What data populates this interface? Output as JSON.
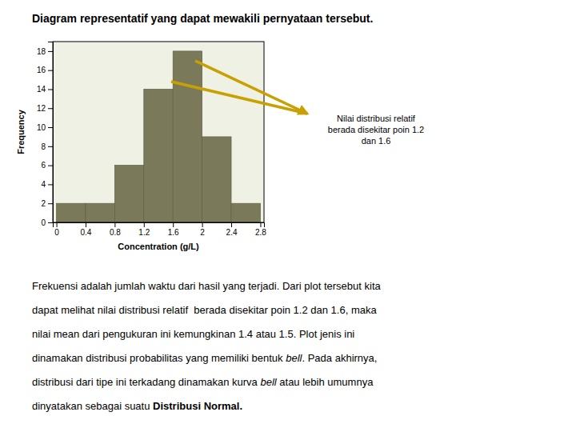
{
  "chart_data": {
    "type": "histogram",
    "title": "Diagram representatif yang dapat mewakili pernyataan tersebut.",
    "bins": [
      0.0,
      0.4,
      0.8,
      1.2,
      1.6,
      2.0,
      2.4,
      2.8
    ],
    "values": [
      2,
      2,
      6,
      14,
      18,
      9,
      2
    ],
    "color": "#7a7a5a",
    "xlabel": "Concentration (g/L)",
    "ylabel": "Frequency",
    "xlim": [
      -0.05,
      2.85
    ],
    "ylim": [
      0,
      19
    ],
    "xticks": [
      0,
      0.4,
      0.8,
      1.2,
      1.6,
      2,
      2.4,
      2.8
    ],
    "yticks": [
      0,
      2,
      4,
      6,
      8,
      10,
      12,
      14,
      16,
      18
    ],
    "annotation": "Nilai distribusi relatif\nberada disekitar poin 1.2\ndan 1.6",
    "body": [
      [
        {
          "text": "Frekuensi adalah jumlah waktu dari hasil yang terjadi. Dari plot tersebut kita",
          "style": "normal"
        }
      ],
      [
        {
          "text": "dapat melihat nilai distribusi relatif  berada disekitar poin 1.2 dan 1.6, maka",
          "style": "normal"
        }
      ],
      [
        {
          "text": "nilai mean dari pengukuran ini kemungkinan 1.4 atau 1.5. Plot jenis ini",
          "style": "normal"
        }
      ],
      [
        {
          "text": "dinamakan distribusi probabilitas yang memiliki bentuk ",
          "style": "normal"
        },
        {
          "text": "bell",
          "style": "italic"
        },
        {
          "text": ". Pada akhirnya,",
          "style": "normal"
        }
      ],
      [
        {
          "text": "distribusi dari tipe ini terkadang dinamakan kurva ",
          "style": "normal"
        },
        {
          "text": "bell",
          "style": "italic"
        },
        {
          "text": " atau lebih umumnya",
          "style": "normal"
        }
      ],
      [
        {
          "text": "dinyatakan sebagai suatu ",
          "style": "normal"
        },
        {
          "text": "Distribusi Normal.",
          "style": "bold"
        }
      ]
    ]
  }
}
